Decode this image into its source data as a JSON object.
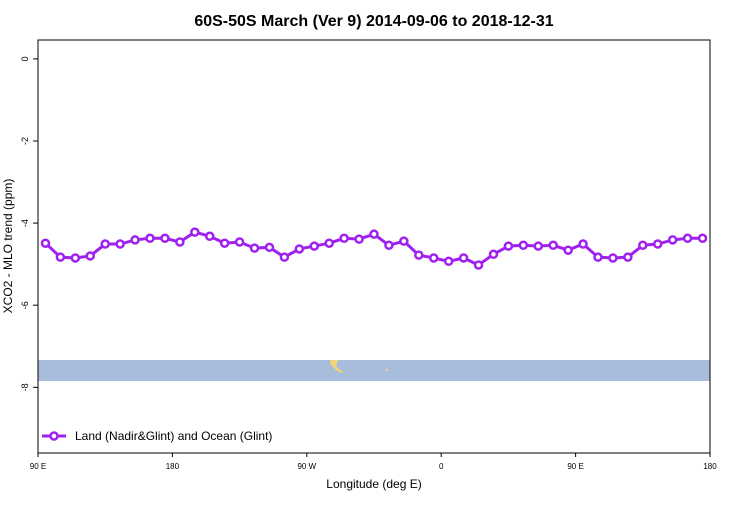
{
  "chart_data": {
    "type": "line",
    "title": "60S-50S March (Ver 9)   2014-09-06 to 2018-12-31",
    "x_label": "Longitude (deg E)",
    "y_label": "XCO2 - MLO trend (ppm)",
    "x": [
      95,
      105,
      115,
      125,
      135,
      145,
      155,
      165,
      175,
      185,
      195,
      205,
      215,
      225,
      235,
      245,
      255,
      265,
      275,
      285,
      295,
      305,
      315,
      325,
      335,
      345,
      355,
      365,
      375,
      385,
      395,
      405,
      415,
      425,
      435,
      445,
      455,
      465,
      475,
      485,
      495,
      505,
      515,
      525,
      535
    ],
    "series": [
      {
        "name": "Land (Nadir&Glint) and Ocean (Glint)",
        "color": "#a020f0",
        "values": [
          -4.49,
          -4.83,
          -4.85,
          -4.8,
          -4.51,
          -4.51,
          -4.41,
          -4.37,
          -4.37,
          -4.46,
          -4.22,
          -4.32,
          -4.49,
          -4.46,
          -4.61,
          -4.59,
          -4.83,
          -4.63,
          -4.56,
          -4.49,
          -4.37,
          -4.39,
          -4.27,
          -4.54,
          -4.44,
          -4.78,
          -4.85,
          -4.93,
          -4.85,
          -5.02,
          -4.76,
          -4.56,
          -4.54,
          -4.56,
          -4.54,
          -4.66,
          -4.51,
          -4.83,
          -4.85,
          -4.83,
          -4.54,
          -4.51,
          -4.41,
          -4.37,
          -4.37
        ]
      }
    ],
    "xlim": [
      90,
      540
    ],
    "xticks": [
      {
        "value": 90,
        "label": "90 E"
      },
      180,
      {
        "value": 270,
        "label": "90 W"
      },
      {
        "value": 360,
        "label": "0"
      },
      {
        "value": 450,
        "label": "90 E"
      },
      {
        "value": 540,
        "label": "180"
      }
    ],
    "ylim": [
      -9.6,
      0.46
    ],
    "yticks": [
      0,
      -2,
      -4,
      -6,
      -8
    ],
    "legend": "bottom-left"
  }
}
